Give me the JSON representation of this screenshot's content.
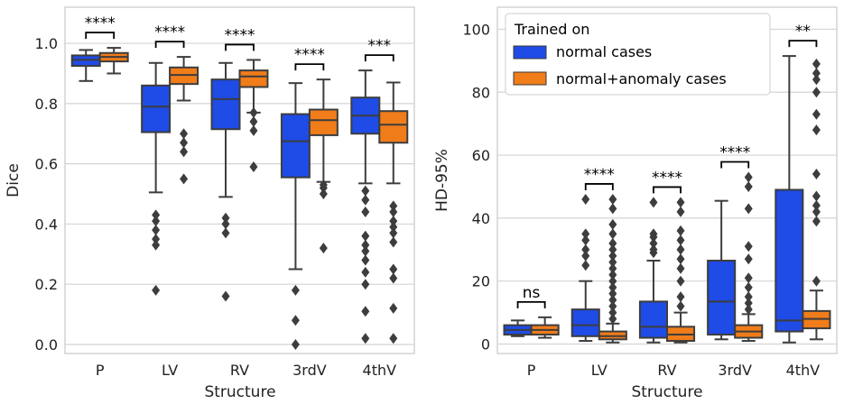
{
  "legend": {
    "title": "Trained on",
    "entries": [
      "normal cases",
      "normal+anomaly cases"
    ],
    "colors": [
      "#1f4be6",
      "#f07c1a"
    ],
    "placement": "top-right of HD-95% panel"
  },
  "chart_data": [
    {
      "type": "box",
      "title": "",
      "xlabel": "Structure",
      "ylabel": "Dice",
      "categories": [
        "P",
        "LV",
        "RV",
        "3rdV",
        "4thV"
      ],
      "ylim": [
        -0.03,
        1.12
      ],
      "yticks": [
        "0.0",
        "0.2",
        "0.4",
        "0.6",
        "0.8",
        "1.0"
      ],
      "grid": "horizontal",
      "series": [
        {
          "name": "normal cases",
          "boxes": [
            {
              "whislo": 0.875,
              "q1": 0.925,
              "med": 0.945,
              "q3": 0.96,
              "whishi": 0.978,
              "fliers": []
            },
            {
              "whislo": 0.505,
              "q1": 0.705,
              "med": 0.79,
              "q3": 0.86,
              "whishi": 0.935,
              "fliers": [
                0.18,
                0.33,
                0.35,
                0.38,
                0.41,
                0.43
              ]
            },
            {
              "whislo": 0.49,
              "q1": 0.715,
              "med": 0.815,
              "q3": 0.88,
              "whishi": 0.935,
              "fliers": [
                0.16,
                0.37,
                0.4,
                0.42
              ]
            },
            {
              "whislo": 0.25,
              "q1": 0.555,
              "med": 0.675,
              "q3": 0.765,
              "whishi": 0.868,
              "fliers": [
                0.0,
                0.08,
                0.18
              ]
            },
            {
              "whislo": 0.535,
              "q1": 0.7,
              "med": 0.76,
              "q3": 0.82,
              "whishi": 0.91,
              "fliers": [
                0.02,
                0.11,
                0.2,
                0.24,
                0.28,
                0.31,
                0.33,
                0.36,
                0.44,
                0.48,
                0.51
              ]
            }
          ]
        },
        {
          "name": "normal+anomaly cases",
          "boxes": [
            {
              "whislo": 0.9,
              "q1": 0.94,
              "med": 0.955,
              "q3": 0.968,
              "whishi": 0.985,
              "fliers": []
            },
            {
              "whislo": 0.81,
              "q1": 0.865,
              "med": 0.895,
              "q3": 0.92,
              "whishi": 0.955,
              "fliers": [
                0.55,
                0.64,
                0.67,
                0.7
              ]
            },
            {
              "whislo": 0.77,
              "q1": 0.855,
              "med": 0.89,
              "q3": 0.91,
              "whishi": 0.945,
              "fliers": [
                0.59,
                0.71,
                0.74,
                0.77
              ]
            },
            {
              "whislo": 0.54,
              "q1": 0.695,
              "med": 0.745,
              "q3": 0.78,
              "whishi": 0.88,
              "fliers": [
                0.32,
                0.5,
                0.52,
                0.53
              ]
            },
            {
              "whislo": 0.535,
              "q1": 0.67,
              "med": 0.73,
              "q3": 0.775,
              "whishi": 0.87,
              "fliers": [
                0.02,
                0.12,
                0.22,
                0.25,
                0.34,
                0.37,
                0.39,
                0.41,
                0.44,
                0.46
              ]
            }
          ]
        }
      ],
      "annotations": [
        "****",
        "****",
        "****",
        "****",
        "***"
      ]
    },
    {
      "type": "box",
      "title": "",
      "xlabel": "Structure",
      "ylabel": "HD-95%",
      "categories": [
        "P",
        "LV",
        "RV",
        "3rdV",
        "4thV"
      ],
      "ylim": [
        -3,
        107
      ],
      "yticks": [
        "0",
        "20",
        "40",
        "60",
        "80",
        "100"
      ],
      "grid": "horizontal",
      "series": [
        {
          "name": "normal cases",
          "boxes": [
            {
              "whislo": 2.5,
              "q1": 3.0,
              "med": 4.5,
              "q3": 6.0,
              "whishi": 7.5,
              "fliers": []
            },
            {
              "whislo": 1.0,
              "q1": 2.5,
              "med": 6.0,
              "q3": 11.0,
              "whishi": 20.0,
              "fliers": [
                25,
                28,
                30,
                33,
                35,
                46
              ]
            },
            {
              "whislo": 0.5,
              "q1": 2.0,
              "med": 5.5,
              "q3": 13.5,
              "whishi": 26.5,
              "fliers": [
                29,
                30,
                32,
                34,
                35,
                45
              ]
            },
            {
              "whislo": 1.5,
              "q1": 3.0,
              "med": 13.5,
              "q3": 26.5,
              "whishi": 45.5,
              "fliers": []
            },
            {
              "whislo": 0.5,
              "q1": 4.0,
              "med": 7.5,
              "q3": 49.0,
              "whishi": 91.5,
              "fliers": []
            }
          ]
        },
        {
          "name": "normal+anomaly cases",
          "boxes": [
            {
              "whislo": 2.0,
              "q1": 3.0,
              "med": 4.5,
              "q3": 6.0,
              "whishi": 8.5,
              "fliers": []
            },
            {
              "whislo": 0.5,
              "q1": 1.5,
              "med": 2.5,
              "q3": 4.0,
              "whishi": 6.5,
              "fliers": [
                8,
                10,
                12,
                14,
                16,
                18,
                20,
                22,
                24,
                26,
                28,
                30,
                32,
                35,
                38,
                43,
                46
              ]
            },
            {
              "whislo": 0.5,
              "q1": 1.0,
              "med": 3.0,
              "q3": 5.5,
              "whishi": 10.0,
              "fliers": [
                12,
                15,
                20,
                24,
                27,
                30,
                33,
                36,
                42,
                45
              ]
            },
            {
              "whislo": 1.0,
              "q1": 2.0,
              "med": 4.0,
              "q3": 6.0,
              "whishi": 9.5,
              "fliers": [
                11,
                13,
                15,
                18,
                21,
                27,
                31,
                43,
                50,
                53
              ]
            },
            {
              "whislo": 1.5,
              "q1": 5.0,
              "med": 8.0,
              "q3": 10.5,
              "whishi": 17.0,
              "fliers": [
                20,
                39,
                42,
                44,
                47,
                54,
                68,
                73,
                80,
                84,
                86,
                89
              ]
            }
          ]
        }
      ],
      "annotations": [
        "ns",
        "****",
        "****",
        "****",
        "**"
      ]
    }
  ]
}
